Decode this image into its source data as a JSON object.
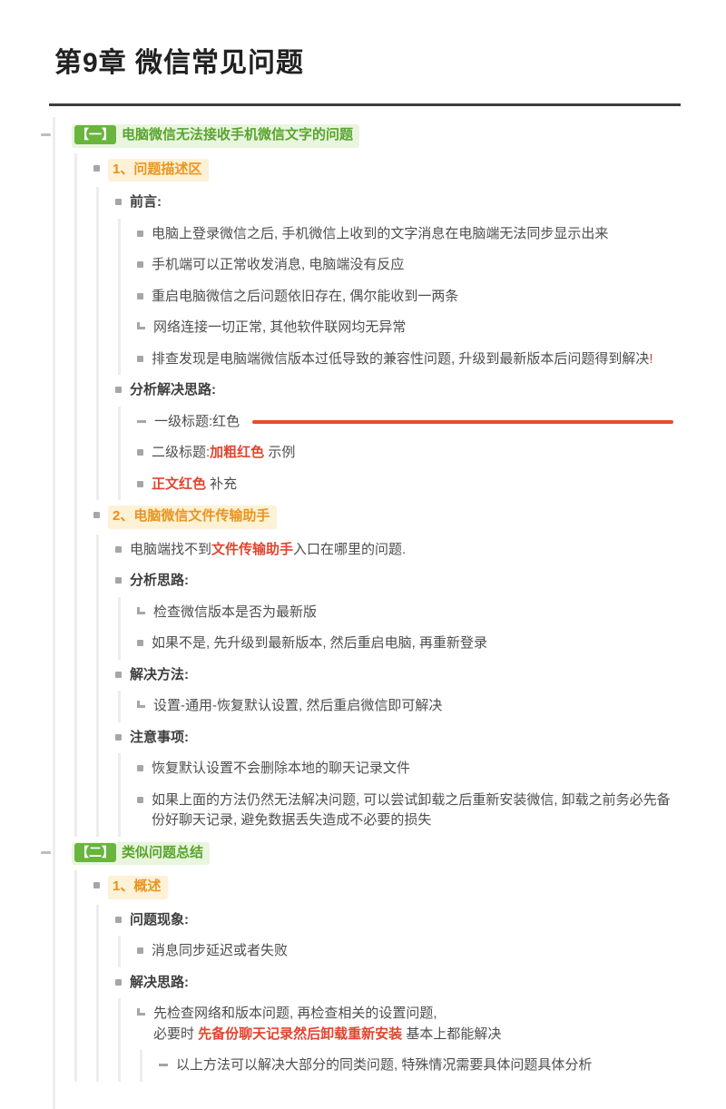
{
  "page": {
    "title": "第9章 微信常见问题"
  },
  "colors": {
    "accent_green": "#69b53e",
    "accent_orange": "#ef9a23",
    "accent_red": "#e0452f",
    "guide_line": "#ededed"
  },
  "outline": {
    "s1": {
      "tag": "【一】",
      "title": "电脑微信无法接收手机微信文字的问题",
      "p1": {
        "num": "1、",
        "title": "问题描述区",
        "preface": {
          "label": "前言:",
          "items": [
            "电脑上登录微信之后, 手机微信上收到的文字消息在电脑端无法同步显示出来",
            "手机端可以正常收发消息, 电脑端没有反应",
            "重启电脑微信之后问题依旧存在, 偶尔能收到一两条",
            "网络连接一切正常, 其他软件联网均无异常"
          ],
          "last": {
            "text": "排查发现是电脑端微信版本过低导致的兼容性问题, 升级到最新版本后问题得到解决",
            "mark": "!"
          }
        },
        "analysis": {
          "label": "分析解决思路:",
          "h1": "一级标题:红色",
          "h2_prefix": "二级标题:",
          "h2_red": "加粗红色",
          "h2_suffix": " 示例",
          "body_red": "正文红色",
          "body_suffix": " 补充"
        }
      },
      "p2": {
        "num": "2、",
        "title": "电脑微信文件传输助手",
        "issue": {
          "prefix": "电脑端找不到",
          "red": "文件传输助手",
          "suffix": "入口在哪里的问题."
        },
        "analysis": {
          "label": "分析思路:",
          "items": [
            "检查微信版本是否为最新版",
            "如果不是, 先升级到最新版本, 然后重启电脑, 再重新登录"
          ]
        },
        "solution": {
          "label": "解决方法:",
          "items": [
            "设置-通用-恢复默认设置, 然后重启微信即可解决"
          ]
        },
        "notes": {
          "label": "注意事项:",
          "items": [
            "恢复默认设置不会删除本地的聊天记录文件",
            "如果上面的方法仍然无法解决问题, 可以尝试卸载之后重新安装微信, 卸载之前务必先备份好聊天记录, 避免数据丢失造成不必要的损失"
          ]
        }
      }
    },
    "s2": {
      "tag": "【二】",
      "title": "类似问题总结",
      "p1": {
        "num": "1、",
        "title": "概述",
        "phenomenon": {
          "label": "问题现象:",
          "items": [
            "消息同步延迟或者失败"
          ]
        },
        "ideas": {
          "label": "解决思路:",
          "line1": "先检查网络和版本问题, 再检查相关的设置问题,",
          "line2_prefix": "必要时 ",
          "line2_red": "先备份聊天记录然后卸载重新安装",
          "line2_suffix": " 基本上都能解决",
          "sub": "以上方法可以解决大部分的同类问题, 特殊情况需要具体问题具体分析"
        }
      }
    }
  }
}
